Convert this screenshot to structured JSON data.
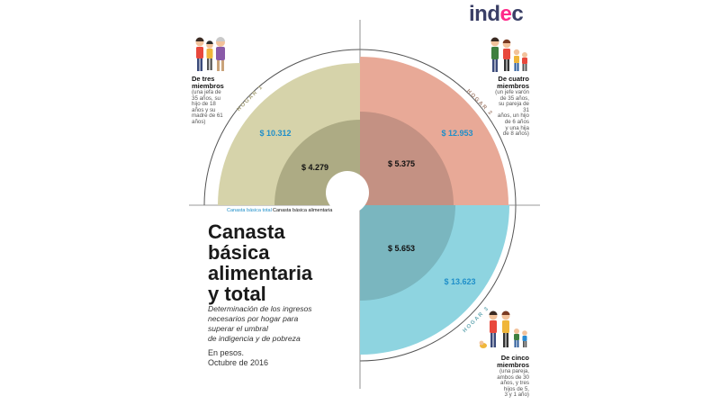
{
  "logo": {
    "text": "ind",
    "accent": "e",
    "tail": "c"
  },
  "title": {
    "lines": [
      "Canasta",
      "básica",
      "alimentaria",
      "y total"
    ]
  },
  "subtitle": {
    "lines": [
      "Determinación de los ingresos",
      "necesarios por hogar para",
      "superar el umbral",
      "de indigencia y de pobreza"
    ]
  },
  "unit": {
    "lines": [
      "En pesos.",
      "Octubre de 2016"
    ]
  },
  "legend": {
    "total": "Canasta básica total",
    "food": "Canasta básica alimentaria"
  },
  "households": [
    {
      "tag": "HOGAR 1",
      "label_lines": [
        "De tres",
        "miembros"
      ],
      "desc_lines": [
        "(una jefa de",
        "35 años, su",
        "hijo de 18",
        "años y su",
        "madre de 61",
        "años)"
      ],
      "cbt": "$ 10.312",
      "cba": "$ 4.279",
      "outer_color": "#d6d3aa",
      "inner_color": "#adab84"
    },
    {
      "tag": "HOGAR 2",
      "label_lines": [
        "De cuatro",
        "miembros"
      ],
      "desc_lines": [
        "(un jefe varón",
        "de 35 años,",
        "su pareja de 31",
        "años, un hijo",
        "de 6 años",
        "y una hija",
        "de 8 años)"
      ],
      "cbt": "$ 12.953",
      "cba": "$ 5.375",
      "outer_color": "#e8a997",
      "inner_color": "#c49183"
    },
    {
      "tag": "HOGAR 3",
      "label_lines": [
        "De cinco",
        "miembros"
      ],
      "desc_lines": [
        "(una pareja,",
        "ambos de 30",
        "años, y tres",
        "hijos de 5,",
        "3 y 1 año)"
      ],
      "cbt": "$ 13.623",
      "cba": "$ 5.653",
      "outer_color": "#8ed4e0",
      "inner_color": "#7ab6bf"
    }
  ],
  "colors": {
    "cbt_text": "#1f8fc9",
    "cba_text": "#111111"
  }
}
